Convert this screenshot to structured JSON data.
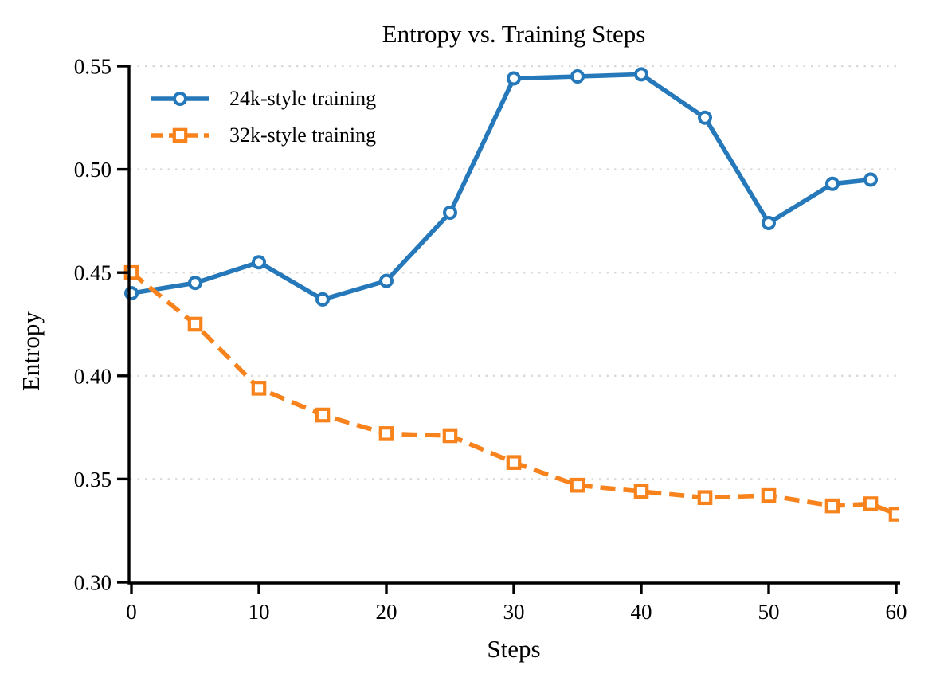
{
  "chart_data": {
    "type": "line",
    "title": "Entropy vs. Training Steps",
    "xlabel": "Steps",
    "ylabel": "Entropy",
    "xlim": [
      0,
      60
    ],
    "ylim": [
      0.3,
      0.55
    ],
    "xticks": [
      0,
      10,
      20,
      30,
      40,
      50,
      60
    ],
    "xtick_labels": [
      "0",
      "10",
      "20",
      "30",
      "40",
      "50",
      "60"
    ],
    "yticks": [
      0.3,
      0.35,
      0.4,
      0.45,
      0.5,
      0.55
    ],
    "ytick_labels": [
      "0.30",
      "0.35",
      "0.40",
      "0.45",
      "0.50",
      "0.55"
    ],
    "grid": {
      "axis": "y",
      "style": "dotted",
      "color": "#d9d9d9"
    },
    "legend": {
      "position": "upper-left",
      "frame": false
    },
    "background_color": "#ffffff",
    "axis_color": "#000000",
    "series": [
      {
        "name": "24k-style training",
        "color": "#2578b9",
        "line_style": "solid",
        "marker": "circle",
        "x": [
          0,
          5,
          10,
          15,
          20,
          25,
          30,
          35,
          40,
          45,
          50,
          55,
          58
        ],
        "y": [
          0.44,
          0.445,
          0.455,
          0.437,
          0.446,
          0.479,
          0.544,
          0.545,
          0.546,
          0.525,
          0.474,
          0.493,
          0.495
        ]
      },
      {
        "name": "32k-style training",
        "color": "#f8821c",
        "line_style": "dashed",
        "marker": "square",
        "x": [
          0,
          5,
          10,
          15,
          20,
          25,
          30,
          35,
          40,
          45,
          50,
          55,
          58,
          60
        ],
        "y": [
          0.45,
          0.425,
          0.394,
          0.381,
          0.372,
          0.371,
          0.358,
          0.347,
          0.344,
          0.341,
          0.342,
          0.337,
          0.338,
          0.333
        ]
      }
    ]
  }
}
